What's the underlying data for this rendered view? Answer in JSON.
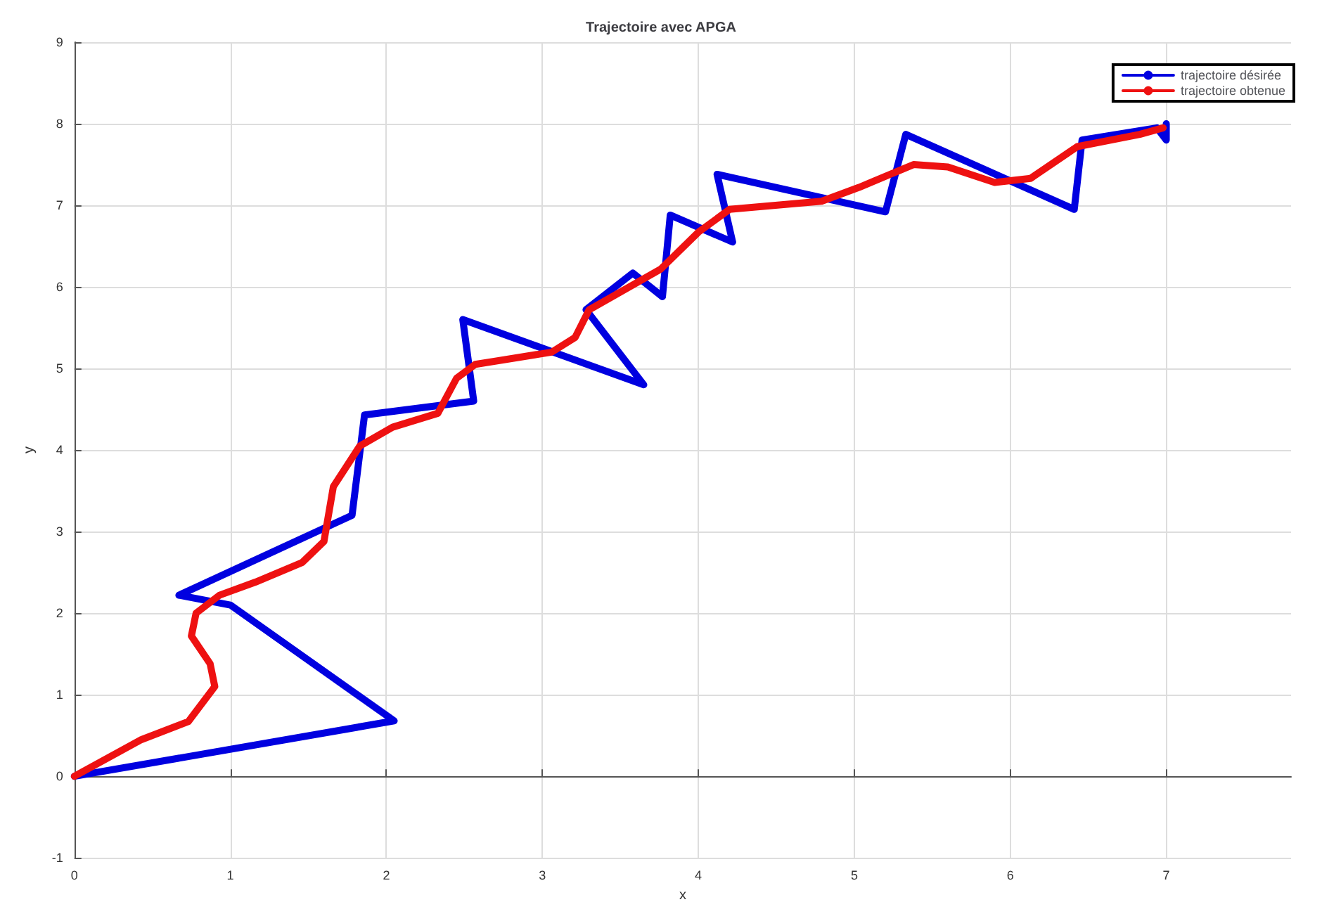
{
  "chart_data": {
    "type": "line",
    "title": "Trajectoire avec APGA",
    "xlabel": "x",
    "ylabel": "y",
    "xlim": [
      0,
      7.8
    ],
    "xticks": [
      0,
      1,
      2,
      3,
      4,
      5,
      6,
      7
    ],
    "ylim": [
      -1,
      9
    ],
    "yticks": [
      -1,
      0,
      1,
      2,
      3,
      4,
      5,
      6,
      7,
      8,
      9
    ],
    "grid": true,
    "legend": "top right",
    "marker": "none",
    "line_style": "solid",
    "series": [
      {
        "name": "trajectoire désirée",
        "color": "#0000e0",
        "x": [
          0,
          2.05,
          1.0,
          0.67,
          1.78,
          1.86,
          2.56,
          2.49,
          3.65,
          3.28,
          3.58,
          3.77,
          3.82,
          4.22,
          4.12,
          5.2,
          5.33,
          6.41,
          6.46,
          6.94,
          7.0,
          7.0
        ],
        "values": [
          0,
          0.68,
          2.1,
          2.22,
          3.2,
          4.43,
          4.6,
          5.6,
          4.8,
          5.72,
          6.17,
          5.88,
          6.88,
          6.55,
          7.38,
          6.92,
          7.87,
          6.95,
          7.8,
          7.95,
          7.8,
          8.0
        ]
      },
      {
        "name": "trajectoire obtenue",
        "color": "#ee1111",
        "x": [
          0,
          0.43,
          0.73,
          0.9,
          0.87,
          0.75,
          0.78,
          0.93,
          1.16,
          1.46,
          1.6,
          1.66,
          1.83,
          2.04,
          2.33,
          2.45,
          2.57,
          3.06,
          3.21,
          3.3,
          3.76,
          4.0,
          4.2,
          4.79,
          5.03,
          5.38,
          5.6,
          5.9,
          6.13,
          6.43,
          6.83,
          6.98
        ],
        "values": [
          0,
          0.45,
          0.67,
          1.1,
          1.38,
          1.72,
          2.0,
          2.22,
          2.38,
          2.62,
          2.88,
          3.55,
          4.05,
          4.28,
          4.45,
          4.88,
          5.05,
          5.2,
          5.38,
          5.72,
          6.22,
          6.67,
          6.95,
          7.05,
          7.22,
          7.5,
          7.47,
          7.28,
          7.33,
          7.72,
          7.87,
          7.95
        ]
      }
    ]
  }
}
